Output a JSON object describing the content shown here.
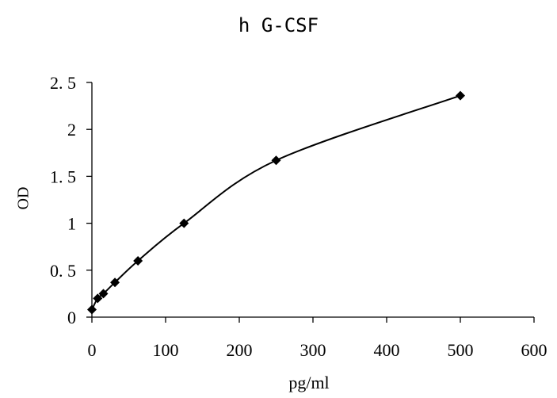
{
  "chart_data": {
    "type": "scatter",
    "title": "h G-CSF",
    "xlabel": "pg/ml",
    "ylabel": "OD",
    "xlim": [
      0,
      600
    ],
    "ylim": [
      0,
      2.5
    ],
    "x_ticks": [
      0,
      100,
      200,
      300,
      400,
      500,
      600
    ],
    "y_ticks": [
      0,
      0.5,
      1,
      1.5,
      2,
      2.5
    ],
    "x_tick_labels": [
      "0",
      "100",
      "200",
      "300",
      "400",
      "500",
      "600"
    ],
    "y_tick_labels": [
      "0",
      "0. 5",
      "1",
      "1. 5",
      "2",
      "2. 5"
    ],
    "grid": false,
    "series": [
      {
        "x": [
          0,
          7.8,
          15.6,
          31.25,
          62.5,
          125,
          250,
          500
        ],
        "y": [
          0.08,
          0.2,
          0.25,
          0.37,
          0.6,
          1.0,
          1.67,
          2.36
        ],
        "marker": "diamond",
        "color": "#000000",
        "smooth_line": true
      }
    ]
  }
}
